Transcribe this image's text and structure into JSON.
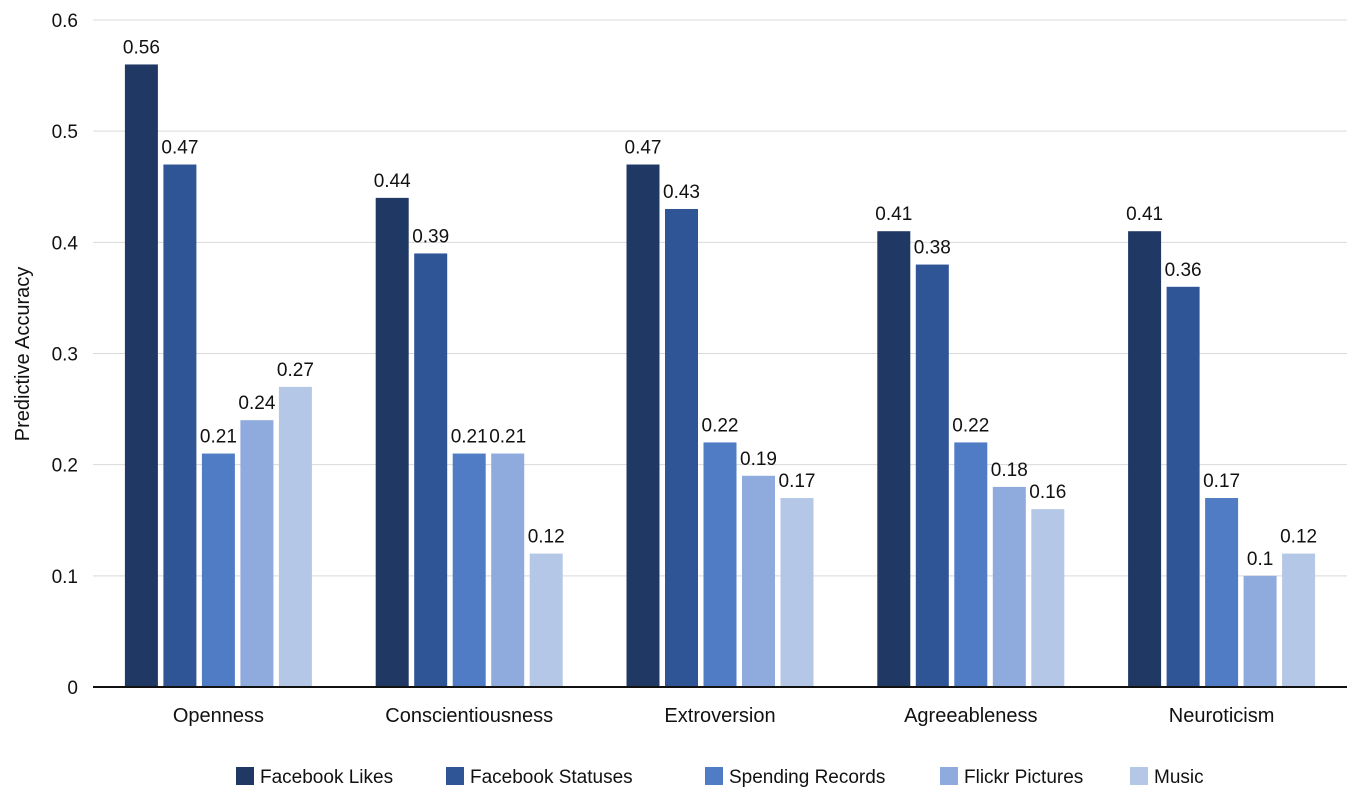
{
  "chart_data": {
    "type": "bar",
    "ylabel": "Predictive Accuracy",
    "xlabel": "",
    "ylim": [
      0,
      0.6
    ],
    "yticks": [
      0,
      0.1,
      0.2,
      0.3,
      0.4,
      0.5,
      0.6
    ],
    "ytick_labels": [
      "0",
      "0.1",
      "0.2",
      "0.3",
      "0.4",
      "0.5",
      "0.6"
    ],
    "grid": true,
    "legend_position": "bottom",
    "categories": [
      "Openness",
      "Conscientiousness",
      "Extroversion",
      "Agreeableness",
      "Neuroticism"
    ],
    "series": [
      {
        "name": "Facebook Likes",
        "color": "#1f3864",
        "values": [
          0.56,
          0.44,
          0.47,
          0.41,
          0.41
        ],
        "labels": [
          "0.56",
          "0.44",
          "0.47",
          "0.41",
          "0.41"
        ]
      },
      {
        "name": "Facebook Statuses",
        "color": "#2f5597",
        "values": [
          0.47,
          0.39,
          0.43,
          0.38,
          0.36
        ],
        "labels": [
          "0.47",
          "0.39",
          "0.43",
          "0.38",
          "0.36"
        ]
      },
      {
        "name": "Spending Records",
        "color": "#4f7cc4",
        "values": [
          0.21,
          0.21,
          0.22,
          0.22,
          0.17
        ],
        "labels": [
          "0.21",
          "0.21",
          "0.22",
          "0.22",
          "0.17"
        ]
      },
      {
        "name": "Flickr Pictures",
        "color": "#8faadc",
        "values": [
          0.24,
          0.21,
          0.19,
          0.18,
          0.1
        ],
        "labels": [
          "0.24",
          "0.21",
          "0.19",
          "0.18",
          "0.1"
        ]
      },
      {
        "name": "Music",
        "color": "#b4c7e7",
        "values": [
          0.27,
          0.12,
          0.17,
          0.16,
          0.12
        ],
        "labels": [
          "0.27",
          "0.12",
          "0.17",
          "0.16",
          "0.12"
        ]
      }
    ]
  }
}
